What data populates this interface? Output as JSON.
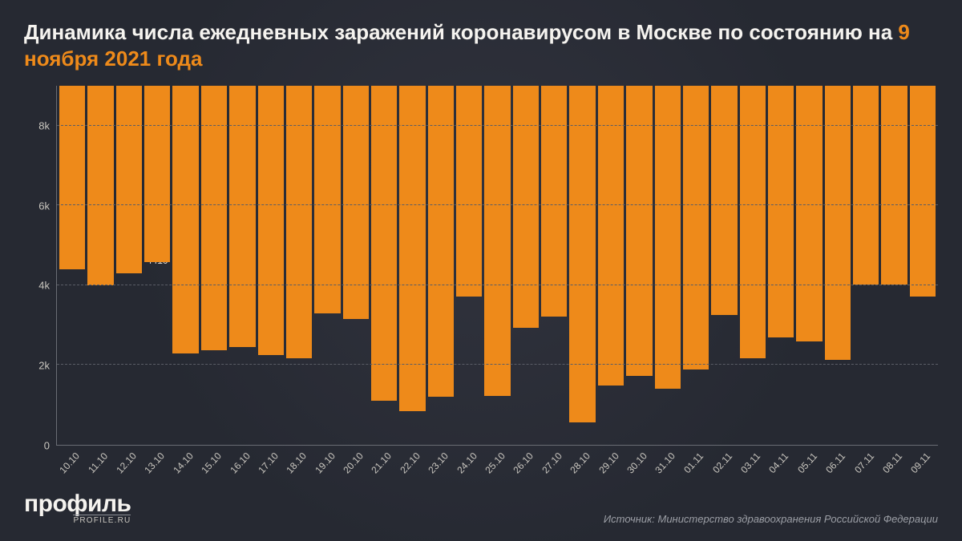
{
  "title_prefix": "Динамика числа ежедневных заражений коронавирусом в Москве по состоянию на ",
  "title_highlight": "9 ноября 2021 года",
  "chart": {
    "type": "bar",
    "bar_color": "#ee8a1a",
    "background_color": "#262932",
    "grid_color": "#5a5d66",
    "axis_color": "#6a6d74",
    "text_color": "#e8e5de",
    "label_fontsize": 12,
    "title_fontsize": 26,
    "ymax": 9000,
    "yticks": [
      {
        "value": 0,
        "label": "0"
      },
      {
        "value": 2000,
        "label": "2k"
      },
      {
        "value": 4000,
        "label": "4k"
      },
      {
        "value": 6000,
        "label": "6k"
      },
      {
        "value": 8000,
        "label": "8k"
      }
    ],
    "data": [
      {
        "date": "10.10",
        "value": 4610
      },
      {
        "date": "11.10",
        "value": 5002
      },
      {
        "date": "12.10",
        "value": 4699
      },
      {
        "date": "13.10",
        "value": 4410
      },
      {
        "date": "14.10",
        "value": 6712
      },
      {
        "date": "15.10",
        "value": 6631
      },
      {
        "date": "16.10",
        "value": 6545
      },
      {
        "date": "17.10",
        "value": 6740
      },
      {
        "date": "18.10",
        "value": 6823
      },
      {
        "date": "19.10",
        "value": 5700
      },
      {
        "date": "20.10",
        "value": 5847
      },
      {
        "date": "21.10",
        "value": 7897
      },
      {
        "date": "22.10",
        "value": 8166
      },
      {
        "date": "23.10",
        "value": 7803
      },
      {
        "date": "24.10",
        "value": 5279
      },
      {
        "date": "25.10",
        "value": 7778
      },
      {
        "date": "26.10",
        "value": 6074
      },
      {
        "date": "27.10",
        "value": 5789
      },
      {
        "date": "28.10",
        "value": 8440
      },
      {
        "date": "29.10",
        "value": 7511
      },
      {
        "date": "30.10",
        "value": 7267
      },
      {
        "date": "31.10",
        "value": 7603
      },
      {
        "date": "01.11",
        "value": 7103
      },
      {
        "date": "02.11",
        "value": 5736
      },
      {
        "date": "03.11",
        "value": 6827
      },
      {
        "date": "04.11",
        "value": 6305
      },
      {
        "date": "05.11",
        "value": 6407
      },
      {
        "date": "06.11",
        "value": 6880
      },
      {
        "date": "07.11",
        "value": 4975
      },
      {
        "date": "08.11",
        "value": 4982
      },
      {
        "date": "09.11",
        "value": 5287
      }
    ]
  },
  "logo": {
    "main": "профиль",
    "sub": "PROFILE.RU"
  },
  "source_prefix": "Источник: ",
  "source_text": "Министерство здравоохранения Российской Федерации"
}
